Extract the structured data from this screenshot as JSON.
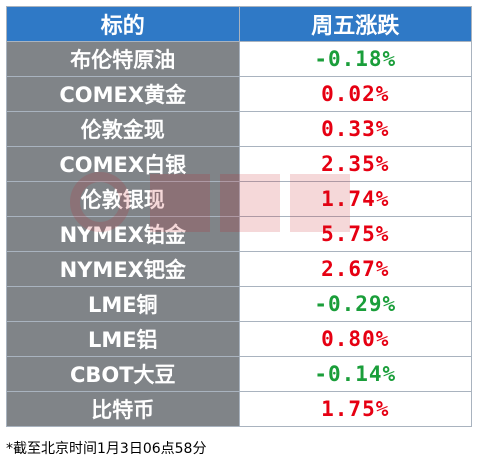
{
  "header": {
    "col1": "标的",
    "col2": "周五涨跌"
  },
  "rows": [
    {
      "name": "布伦特原油",
      "change": "-0.18%",
      "direction": "down"
    },
    {
      "name": "COMEX黄金",
      "change": "0.02%",
      "direction": "up"
    },
    {
      "name": "伦敦金现",
      "change": "0.33%",
      "direction": "up"
    },
    {
      "name": "COMEX白银",
      "change": "2.35%",
      "direction": "up"
    },
    {
      "name": "伦敦银现",
      "change": "1.74%",
      "direction": "up"
    },
    {
      "name": "NYMEX铂金",
      "change": "5.75%",
      "direction": "up"
    },
    {
      "name": "NYMEX钯金",
      "change": "2.67%",
      "direction": "up"
    },
    {
      "name": "LME铜",
      "change": "-0.29%",
      "direction": "down"
    },
    {
      "name": "LME铝",
      "change": "0.80%",
      "direction": "up"
    },
    {
      "name": "CBOT大豆",
      "change": "-0.14%",
      "direction": "down"
    },
    {
      "name": "比特币",
      "change": "1.75%",
      "direction": "up"
    }
  ],
  "footnote": "*截至北京时间1月3日06点58分",
  "colors": {
    "header_bg": "#2f79c6",
    "name_bg": "#808488",
    "up": "#e60012",
    "down": "#1a9e3a"
  },
  "watermark_icon": "cls-logo-icon"
}
